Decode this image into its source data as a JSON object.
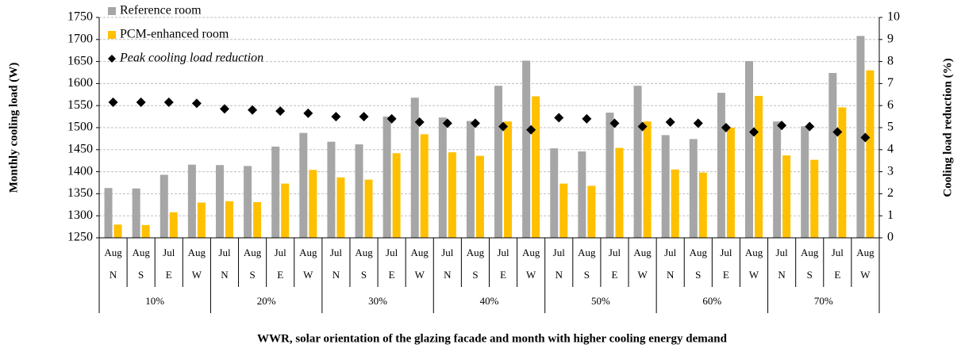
{
  "chart_data": {
    "type": "bar",
    "x_label": "WWR, solar orientation of the glazing facade and month with higher cooling energy demand",
    "y_label": "Monthly cooling load (W)",
    "y2_label": "Cooling load reduction (%)",
    "categories": [
      "Aug",
      "Aug",
      "Jul",
      "Aug",
      "Jul",
      "Aug",
      "Jul",
      "Aug",
      "Jul",
      "Aug",
      "Jul",
      "Aug",
      "Jul",
      "Aug",
      "Jul",
      "Aug",
      "Jul",
      "Aug",
      "Jul",
      "Aug",
      "Jul",
      "Aug",
      "Jul",
      "Aug",
      "Jul",
      "Aug",
      "Jul",
      "Aug"
    ],
    "orientations": [
      "N",
      "S",
      "E",
      "W",
      "N",
      "S",
      "E",
      "W",
      "N",
      "S",
      "E",
      "W",
      "N",
      "S",
      "E",
      "W",
      "N",
      "S",
      "E",
      "W",
      "N",
      "S",
      "E",
      "W",
      "N",
      "S",
      "E",
      "W"
    ],
    "groups": [
      "10%",
      "20%",
      "30%",
      "40%",
      "50%",
      "60%",
      "70%"
    ],
    "series": [
      {
        "name": "Reference room",
        "color": "#a6a6a6",
        "values": [
          1363,
          1362,
          1393,
          1416,
          1415,
          1413,
          1457,
          1488,
          1468,
          1462,
          1525,
          1568,
          1523,
          1515,
          1595,
          1652,
          1453,
          1446,
          1534,
          1595,
          1483,
          1474,
          1579,
          1651,
          1514,
          1503,
          1624,
          1708
        ]
      },
      {
        "name": "PCM-enhanced room",
        "color": "#ffc000",
        "values": [
          1280,
          1279,
          1308,
          1330,
          1333,
          1331,
          1373,
          1404,
          1387,
          1382,
          1442,
          1485,
          1444,
          1436,
          1514,
          1571,
          1373,
          1368,
          1454,
          1514,
          1405,
          1398,
          1500,
          1572,
          1437,
          1427,
          1546,
          1630
        ]
      },
      {
        "name": "Peak cooling load reduction",
        "color": "#000000",
        "axis": "y2",
        "values": [
          6.15,
          6.15,
          6.15,
          6.1,
          5.85,
          5.8,
          5.75,
          5.65,
          5.5,
          5.5,
          5.4,
          5.25,
          5.2,
          5.2,
          5.05,
          4.9,
          5.45,
          5.4,
          5.2,
          5.05,
          5.25,
          5.2,
          5.0,
          4.8,
          5.1,
          5.05,
          4.8,
          4.55
        ]
      }
    ],
    "ylim": [
      1250,
      1750
    ],
    "yticks": [
      1250,
      1300,
      1350,
      1400,
      1450,
      1500,
      1550,
      1600,
      1650,
      1700,
      1750
    ],
    "y2lim": [
      0,
      10
    ],
    "y2ticks": [
      0,
      1,
      2,
      3,
      4,
      5,
      6,
      7,
      8,
      9,
      10
    ],
    "grid": true
  }
}
